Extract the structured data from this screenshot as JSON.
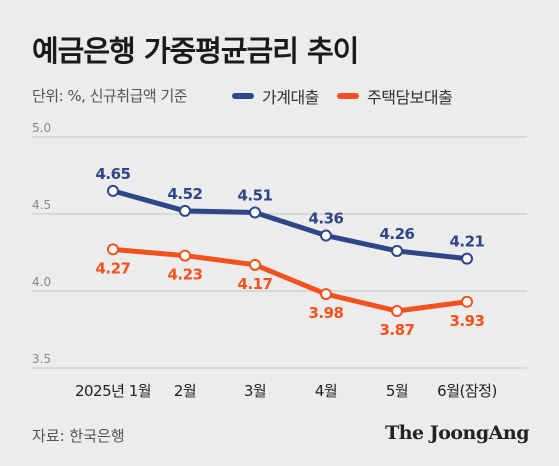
{
  "title": "예금은행 가중평균금리 추이",
  "note": "단위: %, 신규취급액 기준",
  "source": "자료: 한국은행",
  "logo": "The JoongAng",
  "colors": {
    "series_1": "#2d4688",
    "series_2": "#f4511e",
    "grid": "#c4c4c4",
    "axis_label": "#888888"
  },
  "chart_data": {
    "type": "line",
    "title": "예금은행 가중평균금리 추이",
    "ylabel": "",
    "xlabel": "",
    "categories": [
      "2025년 1월",
      "2월",
      "3월",
      "4월",
      "5월",
      "6월(잠정)"
    ],
    "yticks": [
      "3.5",
      "4.0",
      "4.5",
      "5.0"
    ],
    "ylim": [
      3.5,
      5.0
    ],
    "grid": true,
    "legend": "top",
    "series": [
      {
        "name": "가계대출",
        "values": [
          4.65,
          4.52,
          4.51,
          4.36,
          4.26,
          4.21
        ],
        "labels": [
          "4.65",
          "4.52",
          "4.51",
          "4.36",
          "4.26",
          "4.21"
        ],
        "label_position": "above"
      },
      {
        "name": "주택담보대출",
        "values": [
          4.27,
          4.23,
          4.17,
          3.98,
          3.87,
          3.93
        ],
        "labels": [
          "4.27",
          "4.23",
          "4.17",
          "3.98",
          "3.87",
          "3.93"
        ],
        "label_position": "below"
      }
    ]
  }
}
